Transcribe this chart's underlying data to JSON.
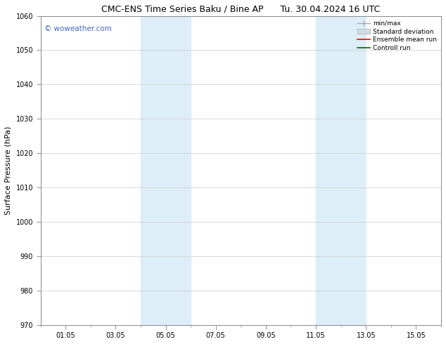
{
  "title": "CMC-ENS Time Series Baku / Bine AP      Tu. 30.04.2024 16 UTC",
  "ylabel": "Surface Pressure (hPa)",
  "ylim": [
    970,
    1060
  ],
  "yticks": [
    970,
    980,
    990,
    1000,
    1010,
    1020,
    1030,
    1040,
    1050,
    1060
  ],
  "xtick_labels": [
    "01.05",
    "03.05",
    "05.05",
    "07.05",
    "09.05",
    "11.05",
    "13.05",
    "15.05"
  ],
  "xtick_positions": [
    1,
    3,
    5,
    7,
    9,
    11,
    13,
    15
  ],
  "xlim": [
    0,
    16
  ],
  "shaded_bands": [
    {
      "x_start": 4.0,
      "x_end": 5.0,
      "color": "#ddeef8"
    },
    {
      "x_start": 5.0,
      "x_end": 6.0,
      "color": "#ddeef8"
    },
    {
      "x_start": 11.0,
      "x_end": 12.0,
      "color": "#ddeef8"
    },
    {
      "x_start": 12.0,
      "x_end": 13.0,
      "color": "#ddeef8"
    }
  ],
  "watermark_text": "© woweather.com",
  "watermark_color": "#4466cc",
  "background_color": "#ffffff",
  "grid_color": "#cccccc",
  "title_fontsize": 9,
  "tick_fontsize": 7,
  "ylabel_fontsize": 8
}
